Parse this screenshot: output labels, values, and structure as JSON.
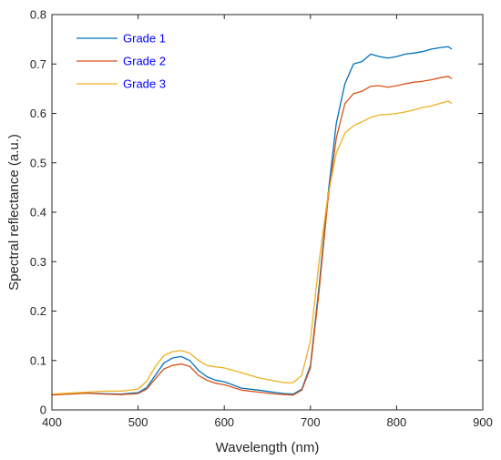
{
  "chart_data": {
    "type": "line",
    "title": "",
    "xlabel": "Wavelength (nm)",
    "ylabel": "Spectral reflectance (a.u.)",
    "xlim": [
      400,
      900
    ],
    "ylim": [
      0,
      0.8
    ],
    "x_ticks": [
      400,
      500,
      600,
      700,
      800,
      900
    ],
    "y_ticks": [
      0,
      0.1,
      0.2,
      0.3,
      0.4,
      0.5,
      0.6,
      0.7,
      0.8
    ],
    "x_tick_labels": [
      "400",
      "500",
      "600",
      "700",
      "800",
      "900"
    ],
    "y_tick_labels": [
      "0",
      "0.1",
      "0.2",
      "0.3",
      "0.4",
      "0.5",
      "0.6",
      "0.7",
      "0.8"
    ],
    "grid": false,
    "legend_position": "top-left",
    "x": [
      400,
      420,
      440,
      460,
      480,
      500,
      510,
      520,
      530,
      540,
      550,
      560,
      570,
      580,
      590,
      600,
      620,
      640,
      660,
      670,
      680,
      690,
      700,
      710,
      720,
      730,
      740,
      750,
      760,
      770,
      780,
      790,
      800,
      810,
      820,
      830,
      840,
      850,
      860,
      864
    ],
    "series": [
      {
        "name": "Grade 1",
        "color": "#0072bd",
        "values": [
          0.031,
          0.032,
          0.034,
          0.033,
          0.032,
          0.035,
          0.045,
          0.07,
          0.095,
          0.105,
          0.108,
          0.1,
          0.08,
          0.067,
          0.06,
          0.057,
          0.044,
          0.04,
          0.035,
          0.033,
          0.032,
          0.042,
          0.09,
          0.25,
          0.43,
          0.58,
          0.66,
          0.7,
          0.705,
          0.72,
          0.715,
          0.712,
          0.715,
          0.72,
          0.722,
          0.725,
          0.73,
          0.733,
          0.735,
          0.73
        ]
      },
      {
        "name": "Grade 2",
        "color": "#d95319",
        "values": [
          0.03,
          0.032,
          0.034,
          0.032,
          0.031,
          0.033,
          0.042,
          0.063,
          0.083,
          0.09,
          0.093,
          0.088,
          0.07,
          0.06,
          0.054,
          0.051,
          0.04,
          0.036,
          0.032,
          0.031,
          0.03,
          0.04,
          0.085,
          0.24,
          0.42,
          0.55,
          0.62,
          0.64,
          0.645,
          0.655,
          0.656,
          0.653,
          0.656,
          0.66,
          0.663,
          0.665,
          0.668,
          0.672,
          0.675,
          0.67
        ]
      },
      {
        "name": "Grade 3",
        "color": "#edb120",
        "values": [
          0.032,
          0.034,
          0.036,
          0.038,
          0.038,
          0.042,
          0.058,
          0.088,
          0.11,
          0.118,
          0.12,
          0.115,
          0.1,
          0.09,
          0.087,
          0.085,
          0.075,
          0.065,
          0.058,
          0.055,
          0.055,
          0.07,
          0.14,
          0.3,
          0.43,
          0.52,
          0.56,
          0.575,
          0.583,
          0.592,
          0.597,
          0.598,
          0.6,
          0.603,
          0.607,
          0.612,
          0.615,
          0.62,
          0.625,
          0.62
        ]
      }
    ]
  }
}
